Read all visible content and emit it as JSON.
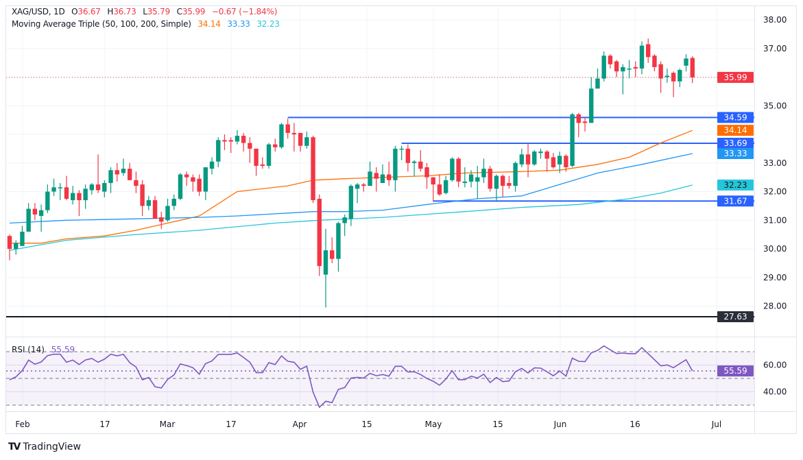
{
  "header": {
    "symbol": "XAG/USD, 1D",
    "o_label": "O",
    "open": "36.67",
    "h_label": "H",
    "high": "36.73",
    "l_label": "L",
    "low": "35.79",
    "c_label": "C",
    "close": "35.99",
    "change": "−0.67 (−1.84%)",
    "ma_title": "Moving Average Triple (50, 100, 200, Simple)",
    "ma50": "34.14",
    "ma100": "33.33",
    "ma200": "32.23"
  },
  "rsi_legend": {
    "title": "RSI (14)",
    "value": "55.59"
  },
  "branding": {
    "name": "TradingView"
  },
  "colors": {
    "up": "#089981",
    "down": "#F23645",
    "ma50": "#FF6D00",
    "ma100": "#2196F3",
    "ma200": "#26C6DA",
    "level": "#2962FF",
    "support": "#131722",
    "rsi": "#7E57C2",
    "last": "#F23645"
  },
  "chart_data": [
    {
      "type": "candlestick",
      "title": "XAG/USD, 1D",
      "ylim": [
        27.3,
        38.45
      ],
      "y_ticks": [
        "38.00",
        "37.00",
        "35.00",
        "33.00",
        "32.00",
        "31.00",
        "30.00",
        "29.00",
        "28.00"
      ],
      "x_ticks": [
        "Feb",
        "17",
        "Mar",
        "17",
        "Apr",
        "15",
        "May",
        "15",
        "Jun",
        "16",
        "Jul"
      ],
      "grid": true,
      "ohlc_fields": [
        "open",
        "high",
        "low",
        "close"
      ],
      "candles": [
        [
          30.45,
          30.5,
          29.6,
          30.0
        ],
        [
          30.0,
          30.3,
          29.8,
          30.2
        ],
        [
          30.1,
          30.8,
          30.1,
          30.6
        ],
        [
          30.6,
          31.6,
          30.6,
          31.4
        ],
        [
          31.4,
          31.6,
          31.0,
          31.2
        ],
        [
          31.15,
          31.55,
          30.6,
          31.35
        ],
        [
          31.35,
          32.25,
          31.25,
          32.0
        ],
        [
          32.0,
          32.45,
          31.85,
          32.15
        ],
        [
          32.15,
          32.3,
          31.7,
          32.15
        ],
        [
          32.15,
          32.55,
          31.7,
          31.75
        ],
        [
          31.7,
          32.2,
          31.55,
          31.95
        ],
        [
          31.95,
          32.05,
          31.15,
          31.7
        ],
        [
          31.7,
          32.25,
          31.4,
          32.1
        ],
        [
          32.05,
          32.3,
          31.9,
          32.25
        ],
        [
          32.25,
          33.3,
          31.95,
          32.05
        ],
        [
          32.0,
          32.4,
          31.8,
          32.3
        ],
        [
          32.3,
          32.85,
          31.95,
          32.75
        ],
        [
          32.75,
          33.0,
          32.35,
          32.6
        ],
        [
          32.65,
          33.15,
          32.55,
          32.8
        ],
        [
          32.8,
          33.0,
          32.4,
          32.4
        ],
        [
          32.4,
          32.7,
          31.95,
          32.2
        ],
        [
          32.25,
          32.4,
          31.15,
          31.5
        ],
        [
          31.5,
          31.85,
          31.35,
          31.7
        ],
        [
          31.7,
          31.85,
          31.05,
          31.05
        ],
        [
          31.1,
          31.3,
          30.7,
          30.95
        ],
        [
          31.0,
          31.75,
          30.95,
          31.5
        ],
        [
          31.5,
          31.9,
          31.35,
          31.75
        ],
        [
          31.75,
          32.65,
          31.7,
          32.6
        ],
        [
          32.6,
          32.7,
          32.2,
          32.5
        ],
        [
          32.5,
          32.6,
          32.0,
          32.35
        ],
        [
          32.45,
          32.6,
          31.85,
          32.0
        ],
        [
          32.0,
          32.85,
          31.7,
          32.85
        ],
        [
          32.8,
          33.2,
          32.6,
          33.05
        ],
        [
          33.05,
          33.9,
          32.85,
          33.8
        ],
        [
          33.8,
          34.0,
          33.45,
          33.75
        ],
        [
          33.8,
          33.9,
          33.35,
          33.75
        ],
        [
          33.75,
          34.15,
          33.65,
          33.95
        ],
        [
          33.95,
          34.05,
          33.4,
          33.7
        ],
        [
          33.7,
          33.9,
          33.0,
          33.5
        ],
        [
          33.5,
          33.5,
          32.55,
          32.9
        ],
        [
          32.95,
          33.2,
          32.8,
          32.9
        ],
        [
          32.9,
          33.7,
          32.8,
          33.65
        ],
        [
          33.65,
          33.85,
          33.4,
          33.55
        ],
        [
          33.55,
          34.4,
          33.5,
          34.35
        ],
        [
          34.35,
          34.55,
          33.85,
          34.05
        ],
        [
          34.05,
          34.4,
          33.4,
          34.0
        ],
        [
          34.05,
          34.05,
          33.4,
          33.6
        ],
        [
          33.6,
          34.1,
          33.5,
          33.9
        ],
        [
          33.9,
          33.95,
          31.6,
          31.7
        ],
        [
          31.75,
          31.9,
          29.05,
          29.4
        ],
        [
          29.1,
          30.7,
          27.95,
          29.95
        ],
        [
          29.95,
          30.4,
          29.5,
          29.65
        ],
        [
          29.65,
          30.95,
          29.2,
          30.9
        ],
        [
          30.9,
          31.2,
          30.45,
          31.1
        ],
        [
          31.05,
          32.25,
          30.8,
          32.2
        ],
        [
          32.1,
          32.3,
          31.6,
          32.25
        ],
        [
          32.25,
          32.3,
          32.0,
          32.2
        ],
        [
          32.2,
          33.05,
          32.2,
          32.7
        ],
        [
          32.65,
          32.85,
          32.0,
          32.45
        ],
        [
          32.3,
          32.95,
          32.3,
          32.6
        ],
        [
          32.6,
          33.05,
          32.2,
          32.4
        ],
        [
          32.4,
          33.6,
          32.0,
          33.5
        ],
        [
          33.5,
          33.6,
          33.1,
          33.5
        ],
        [
          33.5,
          33.65,
          32.7,
          33.0
        ],
        [
          33.0,
          33.1,
          32.55,
          33.05
        ],
        [
          33.05,
          33.45,
          32.7,
          32.8
        ],
        [
          32.85,
          33.0,
          32.1,
          32.5
        ],
        [
          32.5,
          32.5,
          31.65,
          32.25
        ],
        [
          32.25,
          32.6,
          31.85,
          31.9
        ],
        [
          31.95,
          32.55,
          31.9,
          32.4
        ],
        [
          32.4,
          33.2,
          32.35,
          33.15
        ],
        [
          33.15,
          33.2,
          32.15,
          32.35
        ],
        [
          32.3,
          32.85,
          32.15,
          32.35
        ],
        [
          32.35,
          32.75,
          32.15,
          32.6
        ],
        [
          32.35,
          32.9,
          31.75,
          32.5
        ],
        [
          32.5,
          33.15,
          32.3,
          32.8
        ],
        [
          32.8,
          32.9,
          32.0,
          32.1
        ],
        [
          32.1,
          32.6,
          31.65,
          32.55
        ],
        [
          32.55,
          32.6,
          31.8,
          32.2
        ],
        [
          32.3,
          32.55,
          32.1,
          32.2
        ],
        [
          32.2,
          33.05,
          32.0,
          33.0
        ],
        [
          32.95,
          33.5,
          32.85,
          33.3
        ],
        [
          33.3,
          33.7,
          32.5,
          32.95
        ],
        [
          32.95,
          33.45,
          32.9,
          33.4
        ],
        [
          33.35,
          33.5,
          33.15,
          33.4
        ],
        [
          33.4,
          33.45,
          32.7,
          33.15
        ],
        [
          33.2,
          33.35,
          32.8,
          32.85
        ],
        [
          32.95,
          33.4,
          32.65,
          33.25
        ],
        [
          33.25,
          33.3,
          32.7,
          32.85
        ],
        [
          32.9,
          34.75,
          32.85,
          34.7
        ],
        [
          34.7,
          34.75,
          33.9,
          34.4
        ],
        [
          34.45,
          34.6,
          34.1,
          34.4
        ],
        [
          34.4,
          36.0,
          34.4,
          35.6
        ],
        [
          35.6,
          36.3,
          35.6,
          35.95
        ],
        [
          35.95,
          36.9,
          35.85,
          36.75
        ],
        [
          36.75,
          36.8,
          36.3,
          36.45
        ],
        [
          36.55,
          36.6,
          36.0,
          36.2
        ],
        [
          36.2,
          36.45,
          35.4,
          36.35
        ],
        [
          36.3,
          36.6,
          35.95,
          36.3
        ],
        [
          36.35,
          36.55,
          36.0,
          36.3
        ],
        [
          36.3,
          37.25,
          36.1,
          37.1
        ],
        [
          37.15,
          37.35,
          36.5,
          36.7
        ],
        [
          36.75,
          36.8,
          36.2,
          36.35
        ],
        [
          36.45,
          36.55,
          35.45,
          35.95
        ],
        [
          36.0,
          36.3,
          35.8,
          36.05
        ],
        [
          36.15,
          36.2,
          35.3,
          35.85
        ],
        [
          35.85,
          36.3,
          35.65,
          36.25
        ],
        [
          36.4,
          36.8,
          36.2,
          36.65
        ],
        [
          36.67,
          36.73,
          35.79,
          35.99
        ]
      ],
      "moving_averages": [
        {
          "name": "50",
          "color": "#FF6D00",
          "label": "34.14",
          "points": [
            [
              1,
              30.2
            ],
            [
              6,
              30.2
            ],
            [
              10,
              30.35
            ],
            [
              16,
              30.45
            ],
            [
              21,
              30.65
            ],
            [
              25,
              30.85
            ],
            [
              31,
              31.15
            ],
            [
              37,
              32.0
            ],
            [
              45,
              32.2
            ],
            [
              49,
              32.4
            ],
            [
              54,
              32.45
            ],
            [
              60,
              32.5
            ],
            [
              67,
              32.55
            ],
            [
              73,
              32.65
            ],
            [
              82,
              32.7
            ],
            [
              88,
              32.75
            ],
            [
              94,
              32.95
            ],
            [
              99,
              33.2
            ],
            [
              104,
              33.7
            ],
            [
              109,
              34.14
            ]
          ]
        },
        {
          "name": "100",
          "color": "#2196F3",
          "label": "33.33",
          "points": [
            [
              1,
              30.9
            ],
            [
              10,
              31.0
            ],
            [
              21,
              31.05
            ],
            [
              31,
              31.1
            ],
            [
              37,
              31.15
            ],
            [
              45,
              31.25
            ],
            [
              49,
              31.3
            ],
            [
              54,
              31.3
            ],
            [
              60,
              31.35
            ],
            [
              67,
              31.55
            ],
            [
              75,
              31.75
            ],
            [
              82,
              31.85
            ],
            [
              88,
              32.25
            ],
            [
              94,
              32.65
            ],
            [
              101,
              32.95
            ],
            [
              109,
              33.33
            ]
          ]
        },
        {
          "name": "200",
          "color": "#26C6DA",
          "label": "32.23",
          "points": [
            [
              1,
              29.95
            ],
            [
              10,
              30.3
            ],
            [
              21,
              30.5
            ],
            [
              31,
              30.65
            ],
            [
              43,
              30.9
            ],
            [
              50,
              31.0
            ],
            [
              60,
              31.1
            ],
            [
              73,
              31.3
            ],
            [
              82,
              31.45
            ],
            [
              91,
              31.55
            ],
            [
              99,
              31.75
            ],
            [
              104,
              31.95
            ],
            [
              109,
              32.23
            ]
          ]
        }
      ],
      "horizontal_levels": [
        {
          "value": 34.59,
          "label": "34.59",
          "from_bar": 45,
          "color": "#2962FF"
        },
        {
          "value": 33.69,
          "label": "33.69",
          "from_bar": 63,
          "color": "#2962FF"
        },
        {
          "value": 31.67,
          "label": "31.67",
          "from_bar": 68,
          "color": "#2962FF"
        },
        {
          "value": 27.63,
          "label": "27.63",
          "from_bar": 0,
          "color": "#131722"
        }
      ],
      "last_price": {
        "value": 35.99,
        "label": "35.99"
      }
    },
    {
      "type": "line",
      "title": "RSI (14)",
      "ylim": [
        25,
        78
      ],
      "y_ticks": [
        "60.00",
        "40.00"
      ],
      "bands": [
        70,
        50,
        30
      ],
      "midline": 55.59,
      "last_label": "55.59",
      "values": [
        49,
        51.2,
        55.8,
        63.7,
        60.6,
        62.3,
        67.1,
        68.1,
        68.1,
        62.1,
        63.7,
        60.4,
        63.8,
        65,
        62.1,
        64.4,
        68.1,
        66.9,
        68,
        61.8,
        58.5,
        49,
        50.7,
        43.8,
        42.8,
        49.3,
        52.6,
        60.8,
        59.6,
        58,
        53.2,
        61.1,
        63,
        68,
        68,
        68,
        69.1,
        65.7,
        62.1,
        54.3,
        54.3,
        61.8,
        60.4,
        66.8,
        62.8,
        62.1,
        56.8,
        59.2,
        39.7,
        28.4,
        32.9,
        31.9,
        41.8,
        43.2,
        50.3,
        50.8,
        50.3,
        53.8,
        52,
        52.9,
        51.7,
        59.1,
        59.1,
        54.8,
        55,
        52.9,
        50,
        47.9,
        44.9,
        49.6,
        55.8,
        49.1,
        49.1,
        51.7,
        50.3,
        53.2,
        46.9,
        50.7,
        47.6,
        48.1,
        55,
        57.5,
        54.1,
        57.9,
        57.7,
        55,
        52,
        55.5,
        51.7,
        65.2,
        62.8,
        62.5,
        69.1,
        71,
        74.3,
        71.4,
        68.6,
        69,
        68.5,
        68.5,
        73.1,
        68.5,
        64,
        59.4,
        60.1,
        58,
        61.1,
        64,
        55.59
      ]
    }
  ]
}
